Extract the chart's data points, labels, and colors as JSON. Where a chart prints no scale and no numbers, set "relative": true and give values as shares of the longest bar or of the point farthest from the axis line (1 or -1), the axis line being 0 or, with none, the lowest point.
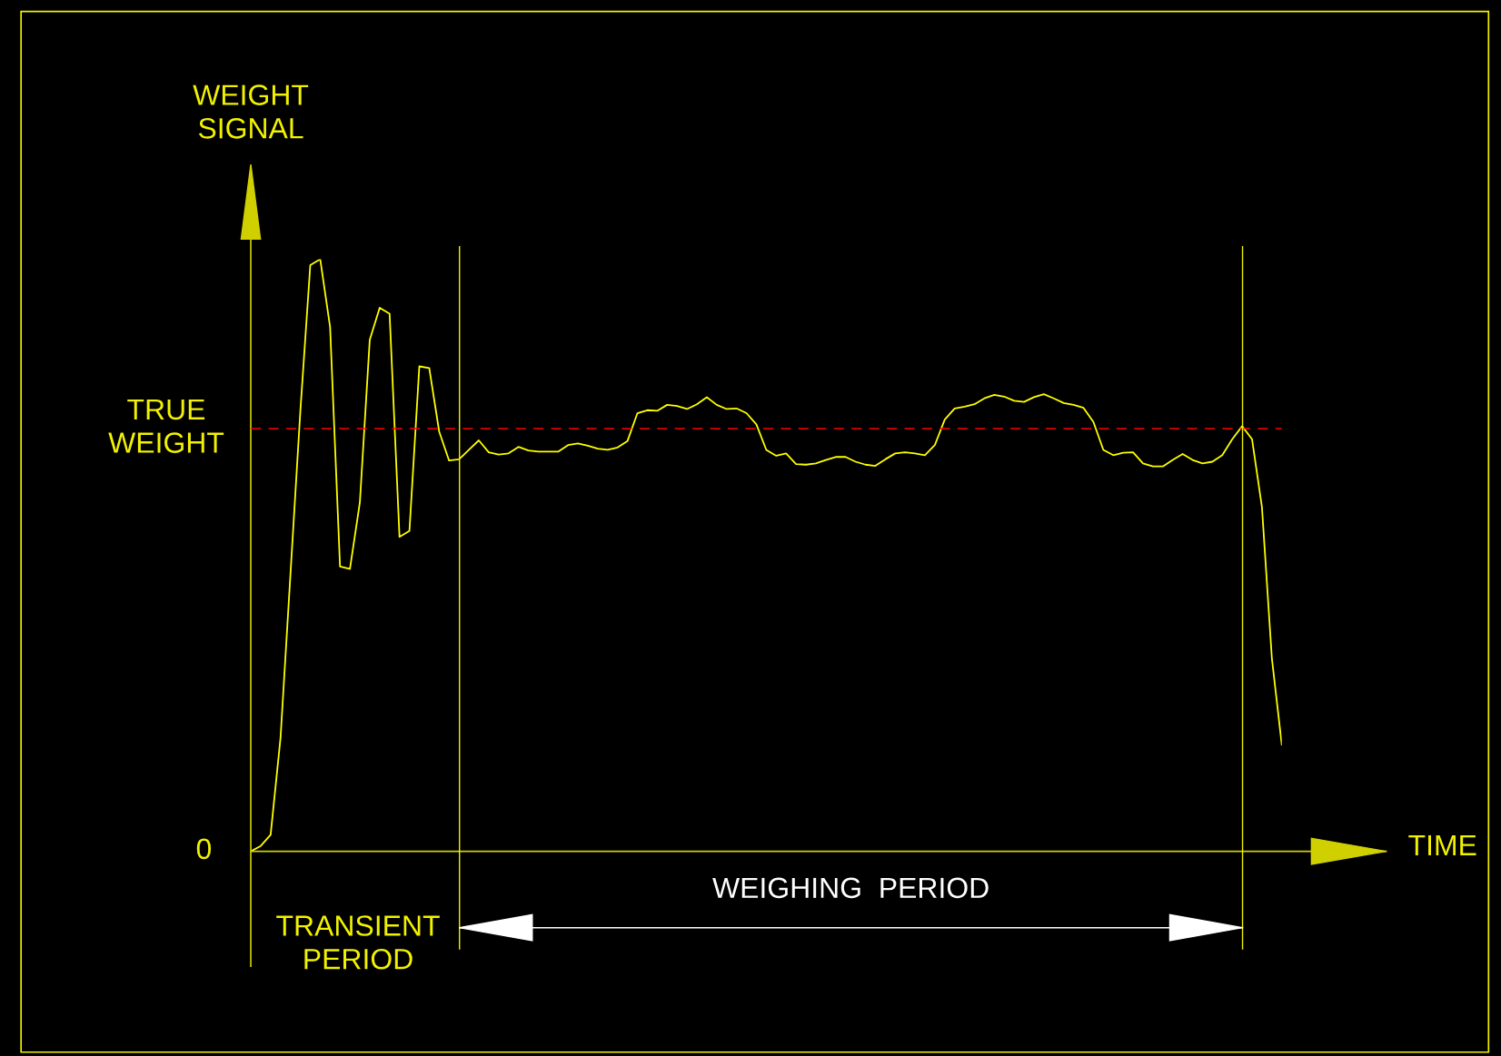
{
  "chart_data": {
    "type": "line",
    "relative": true,
    "ylabel": "WEIGHT\nSIGNAL",
    "xlabel": "TIME",
    "marker": "none",
    "line_style": "solid",
    "categories": [
      null,
      null,
      null,
      null,
      null,
      null,
      null,
      null,
      null,
      null,
      null,
      null,
      null,
      null,
      null,
      null,
      null,
      null,
      null,
      null,
      null,
      null,
      null,
      null,
      null,
      null,
      null,
      null,
      null,
      null,
      null,
      null,
      null,
      null,
      null,
      null,
      null,
      null,
      null,
      null,
      null,
      null,
      null,
      null,
      null,
      null,
      null,
      null,
      null,
      null,
      null,
      null,
      null,
      null,
      null,
      null,
      null,
      null,
      null,
      null,
      null,
      null,
      null,
      null,
      null,
      null,
      null,
      null,
      null,
      null,
      null,
      null,
      null,
      null,
      null,
      null,
      null,
      null,
      null,
      null,
      null,
      null,
      null,
      null,
      null,
      null,
      null,
      null,
      null,
      null,
      null,
      null,
      null,
      null,
      null,
      null,
      null,
      null,
      null,
      null,
      null,
      null,
      null,
      null,
      null
    ],
    "series": [
      {
        "color": "#ffff00",
        "values": [
          0,
          0.009,
          0.028,
          0.192,
          0.468,
          0.744,
          0.99,
          1.0,
          0.885,
          0.481,
          0.477,
          0.589,
          0.864,
          0.918,
          0.908,
          0.531,
          0.541,
          0.819,
          0.816,
          0.709,
          0.66,
          0.662,
          0.678,
          0.694,
          0.674,
          0.67,
          0.672,
          0.683,
          0.677,
          0.675,
          0.675,
          0.675,
          0.686,
          0.689,
          0.685,
          0.68,
          0.678,
          0.682,
          0.693,
          0.74,
          0.745,
          0.744,
          0.754,
          0.752,
          0.747,
          0.755,
          0.767,
          0.754,
          0.747,
          0.748,
          0.74,
          0.721,
          0.678,
          0.668,
          0.672,
          0.654,
          0.653,
          0.655,
          0.661,
          0.666,
          0.666,
          0.658,
          0.653,
          0.651,
          0.662,
          0.672,
          0.674,
          0.672,
          0.669,
          0.686,
          0.729,
          0.748,
          0.751,
          0.755,
          0.765,
          0.771,
          0.768,
          0.761,
          0.759,
          0.767,
          0.772,
          0.765,
          0.757,
          0.754,
          0.749,
          0.725,
          0.678,
          0.669,
          0.673,
          0.674,
          0.655,
          0.65,
          0.65,
          0.661,
          0.671,
          0.661,
          0.655,
          0.658,
          0.669,
          0.696,
          0.718,
          0.696,
          0.581,
          0.326,
          0.18
        ]
      }
    ],
    "ref_lines": [
      {
        "axis": "y",
        "value": 0.714,
        "label": "TRUE\nWEIGHT",
        "color": "#ff0000",
        "line_style": "dashed"
      }
    ],
    "annotations": [
      "0",
      "TRANSIENT\nPERIOD",
      "WEIGHING  PERIOD"
    ]
  }
}
